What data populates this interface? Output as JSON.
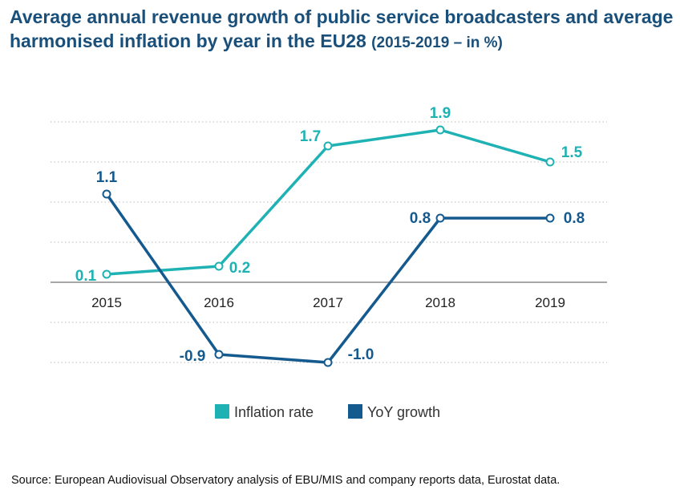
{
  "title": {
    "main": "Average annual revenue growth of public service broadcasters and average harmonised inflation by year in the EU28",
    "sub": "(2015-2019 – in %)"
  },
  "chart_data": {
    "type": "line",
    "title": "Average annual revenue growth of public service broadcasters and average harmonised inflation by year in the EU28 (2015-2019 – in %)",
    "categories": [
      "2015",
      "2016",
      "2017",
      "2018",
      "2019"
    ],
    "series": [
      {
        "name": "Inflation rate",
        "color": "#1fb2b4",
        "values": [
          0.1,
          0.2,
          1.7,
          1.9,
          1.5
        ],
        "labels": [
          "0.1",
          "0.2",
          "1.7",
          "1.9",
          "1.5"
        ]
      },
      {
        "name": "YoY growth",
        "color": "#155a8f",
        "values": [
          1.1,
          -0.9,
          -1.0,
          0.8,
          0.8
        ],
        "labels": [
          "1.1",
          "-0.9",
          "-1.0",
          "0.8",
          "0.8"
        ]
      }
    ],
    "ylim": [
      -1.0,
      2.0
    ],
    "grid": true,
    "xlabel": "",
    "ylabel": "",
    "legend_position": "bottom"
  },
  "source": "Source: European Audiovisual Observatory analysis of EBU/MIS and company reports data, Eurostat data."
}
